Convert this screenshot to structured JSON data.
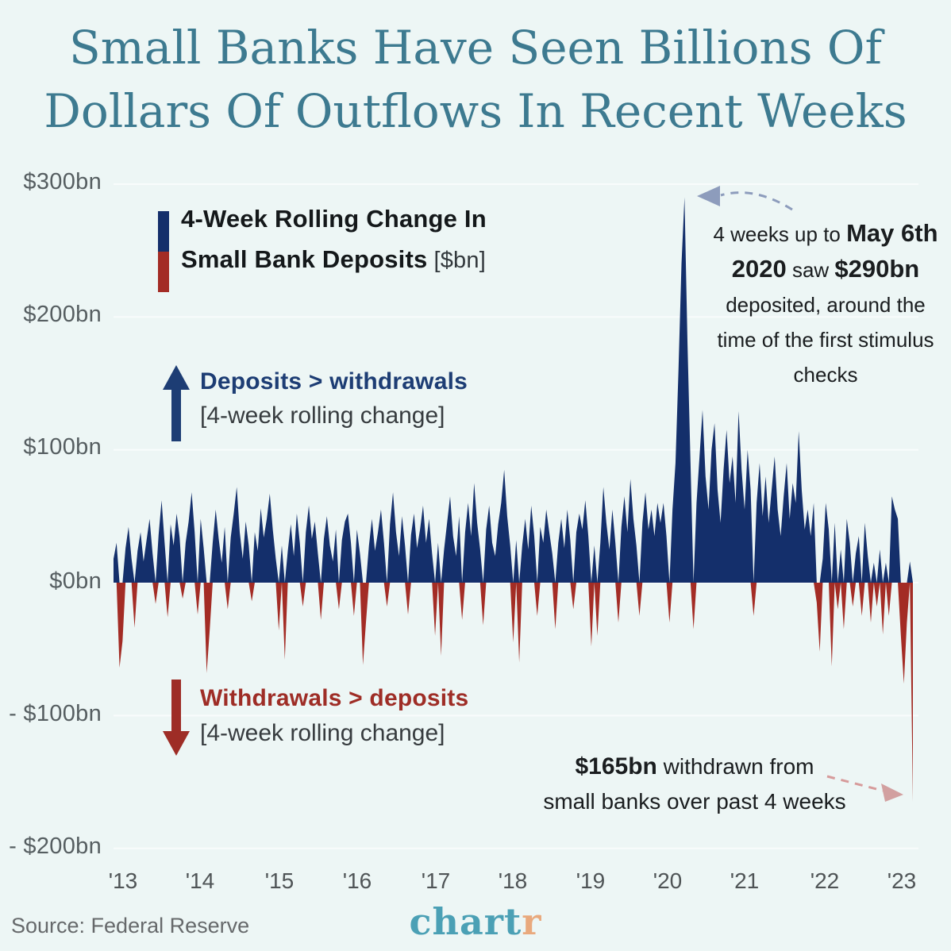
{
  "title": {
    "line1": "Small Banks Have Seen Billions Of",
    "line2": "Dollars Of Outflows In Recent Weeks"
  },
  "legend": {
    "line1": "4-Week Rolling Change In",
    "line2": "Small Bank Deposits",
    "unit_suffix": "[$bn]"
  },
  "annotations": {
    "deposits": {
      "title": "Deposits > withdrawals",
      "subtitle": "[4-week rolling change]"
    },
    "withdrawals": {
      "title": "Withdrawals > deposits",
      "subtitle": "[4-week rolling change]"
    },
    "peak": {
      "lines": [
        [
          [
            "4 weeks up to ",
            0
          ],
          [
            "May 6th",
            1
          ]
        ],
        [
          [
            "2020",
            1
          ],
          [
            " saw ",
            0
          ],
          [
            "$290bn",
            1
          ]
        ],
        [
          [
            "deposited, around the",
            0
          ]
        ],
        [
          [
            "time of the first stimulus",
            0
          ]
        ],
        [
          [
            "checks",
            0
          ]
        ]
      ]
    },
    "outflow": {
      "lines": [
        [
          [
            "$165bn",
            1
          ],
          [
            " withdrawn from",
            0
          ]
        ],
        [
          [
            "small banks over past 4 weeks",
            0
          ]
        ]
      ]
    }
  },
  "footer": {
    "source": "Source: Federal Reserve",
    "logo_main": "chart",
    "logo_accent": "r"
  },
  "colors": {
    "background": "#edf6f5",
    "title_teal": "#3d7a90",
    "navy": "#142f6b",
    "red": "#a32c25",
    "grid": "#f8fcfc",
    "arrow_blue_gray": "#8d9cbc",
    "arrow_pink": "#d79b9b",
    "logo_teal": "#4ba0b5",
    "logo_orange": "#e9a97d"
  },
  "chart_data": {
    "type": "area",
    "series_name": "4-Week Rolling Change In Small Bank Deposits",
    "unit": "$bn",
    "x_ticks": [
      "'13",
      "'14",
      "'15",
      "'16",
      "'17",
      "'18",
      "'19",
      "'20",
      "'21",
      "'22",
      "'23"
    ],
    "y_ticks": [
      "$300bn",
      "$200bn",
      "$100bn",
      "$0bn",
      "- $100bn",
      "- $200bn"
    ],
    "y_tick_values": [
      300,
      200,
      100,
      0,
      -100,
      -200
    ],
    "ylim": [
      -200,
      300
    ],
    "grid": true,
    "legend_position": "top-left",
    "x_start_year": 2013,
    "points_per_year": 26,
    "positive_color": "#142f6b",
    "negative_color": "#a32c25",
    "key_points": [
      {
        "label": "4 weeks up to May 6th 2020",
        "value": 290
      },
      {
        "label": "withdrawn over past 4 weeks (latest)",
        "value": -165
      }
    ],
    "values": [
      18,
      30,
      -64,
      -44,
      26,
      42,
      18,
      -34,
      24,
      38,
      16,
      32,
      48,
      22,
      -16,
      36,
      62,
      30,
      -26,
      44,
      28,
      52,
      34,
      -12,
      30,
      46,
      68,
      38,
      -24,
      48,
      26,
      -68,
      -36,
      30,
      55,
      33,
      15,
      42,
      -20,
      34,
      52,
      72,
      38,
      18,
      46,
      28,
      -14,
      38,
      24,
      56,
      34,
      48,
      67,
      40,
      18,
      -36,
      28,
      -58,
      24,
      44,
      20,
      52,
      30,
      -18,
      38,
      58,
      33,
      46,
      22,
      -28,
      33,
      50,
      28,
      16,
      40,
      -20,
      32,
      46,
      52,
      30,
      -25,
      40,
      22,
      -62,
      -30,
      28,
      48,
      24,
      38,
      55,
      30,
      -18,
      44,
      68,
      38,
      20,
      50,
      28,
      -24,
      36,
      52,
      26,
      40,
      58,
      30,
      48,
      22,
      -40,
      30,
      -55,
      25,
      45,
      65,
      35,
      20,
      50,
      -28,
      38,
      60,
      35,
      75,
      45,
      25,
      -32,
      40,
      58,
      30,
      20,
      44,
      60,
      85,
      50,
      28,
      -45,
      32,
      -60,
      28,
      48,
      25,
      58,
      35,
      -25,
      42,
      30,
      55,
      38,
      22,
      -35,
      30,
      48,
      26,
      55,
      32,
      -20,
      38,
      52,
      40,
      62,
      35,
      -48,
      28,
      -40,
      30,
      72,
      45,
      25,
      55,
      30,
      -30,
      42,
      65,
      38,
      78,
      48,
      28,
      -25,
      45,
      68,
      40,
      55,
      35,
      60,
      45,
      60,
      35,
      -30,
      55,
      90,
      160,
      240,
      290,
      180,
      90,
      -35,
      60,
      95,
      130,
      80,
      55,
      100,
      120,
      70,
      45,
      85,
      115,
      75,
      95,
      60,
      129,
      85,
      55,
      100,
      70,
      -25,
      60,
      90,
      50,
      80,
      45,
      70,
      95,
      55,
      35,
      65,
      90,
      48,
      75,
      60,
      114,
      70,
      40,
      55,
      35,
      60,
      -15,
      -52,
      18,
      60,
      40,
      -63,
      45,
      -20,
      25,
      -35,
      48,
      30,
      -18,
      22,
      35,
      -25,
      45,
      20,
      -30,
      15,
      -18,
      25,
      -39,
      15,
      -25,
      65,
      55,
      48,
      -40,
      -76,
      -30,
      16,
      -165
    ]
  }
}
